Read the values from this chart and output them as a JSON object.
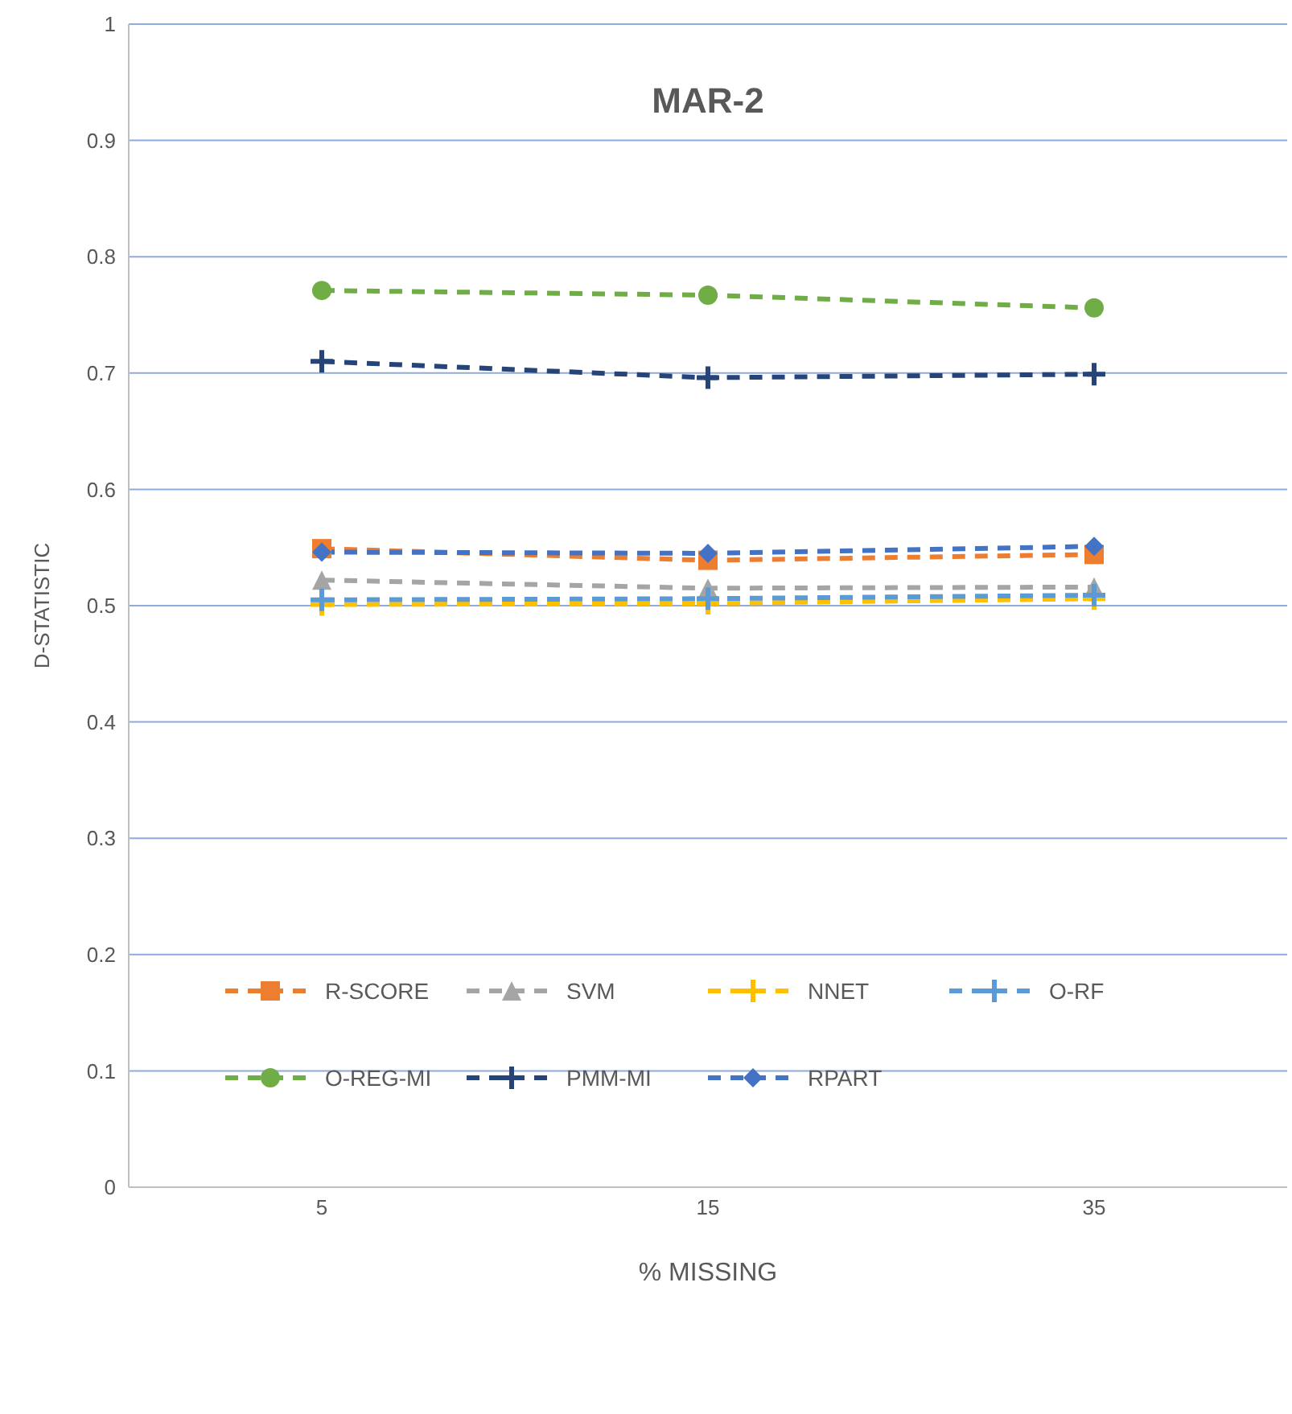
{
  "chart_data": {
    "type": "line",
    "title": "MAR-2",
    "xlabel": "% MISSING",
    "ylabel": "D-STATISTIC",
    "categories": [
      "5",
      "15",
      "35"
    ],
    "ylim": [
      0,
      1
    ],
    "yticks": [
      0,
      0.1,
      0.2,
      0.3,
      0.4,
      0.5,
      0.6,
      0.7,
      0.8,
      0.9,
      1
    ],
    "grid": "y",
    "legend": "bottom",
    "line_style": "dashed",
    "series": [
      {
        "name": "R-SCORE",
        "color": "#ed7d31",
        "marker": "square",
        "values": [
          0.549,
          0.539,
          0.544
        ]
      },
      {
        "name": "SVM",
        "color": "#a5a5a5",
        "marker": "triangle",
        "values": [
          0.522,
          0.515,
          0.516
        ]
      },
      {
        "name": "NNET",
        "color": "#ffc000",
        "marker": "cross",
        "values": [
          0.501,
          0.502,
          0.506
        ]
      },
      {
        "name": "O-RF",
        "color": "#5b9bd5",
        "marker": "cross",
        "values": [
          0.505,
          0.506,
          0.509
        ]
      },
      {
        "name": "O-REG-MI",
        "color": "#70ad47",
        "marker": "circle",
        "values": [
          0.771,
          0.767,
          0.756
        ]
      },
      {
        "name": "PMM-MI",
        "color": "#264478",
        "marker": "cross",
        "values": [
          0.71,
          0.696,
          0.699
        ]
      },
      {
        "name": "RPART",
        "color": "#4472c4",
        "marker": "diamond",
        "values": [
          0.546,
          0.545,
          0.551
        ]
      }
    ]
  }
}
